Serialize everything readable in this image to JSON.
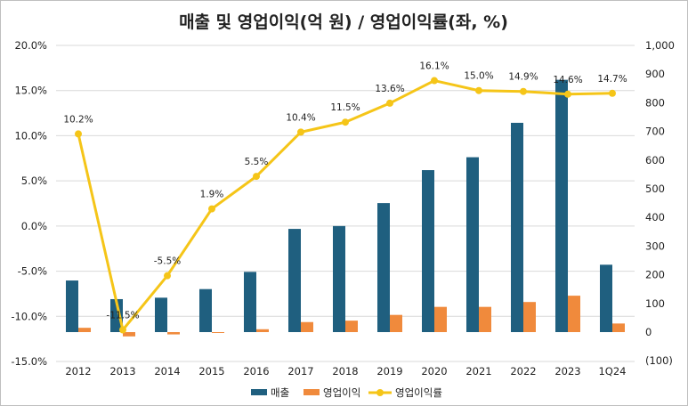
{
  "chart_data": {
    "type": "bar",
    "title": "매출 및 영업이익(억 원) / 영업이익률(좌, %)",
    "categories": [
      "2012",
      "2013",
      "2014",
      "2015",
      "2016",
      "2017",
      "2018",
      "2019",
      "2020",
      "2021",
      "2022",
      "2023",
      "1Q24"
    ],
    "series": [
      {
        "name": "매출",
        "type": "bar",
        "axis": "right",
        "color": "#1f5f7f",
        "values": [
          180,
          115,
          120,
          150,
          210,
          360,
          370,
          450,
          565,
          610,
          730,
          880,
          235
        ]
      },
      {
        "name": "영업이익",
        "type": "bar",
        "axis": "right",
        "color": "#f08a3c",
        "values": [
          15,
          -15,
          -8,
          -3,
          10,
          35,
          40,
          60,
          88,
          88,
          105,
          127,
          30
        ]
      },
      {
        "name": "영업이익률",
        "type": "line",
        "axis": "left",
        "color": "#f5c518",
        "values": [
          10.2,
          -11.5,
          -5.5,
          1.9,
          5.5,
          10.4,
          11.5,
          13.6,
          16.1,
          15.0,
          14.9,
          14.6,
          14.7
        ],
        "labels": [
          "10.2%",
          "-11.5%",
          "-5.5%",
          "1.9%",
          "5.5%",
          "10.4%",
          "11.5%",
          "13.6%",
          "16.1%",
          "15.0%",
          "14.9%",
          "14.6%",
          "14.7%"
        ]
      }
    ],
    "left_axis": {
      "range": [
        -15,
        20
      ],
      "ticks": [
        "20.0%",
        "15.0%",
        "10.0%",
        "5.0%",
        "0.0%",
        "-5.0%",
        "-10.0%",
        "-15.0%"
      ]
    },
    "right_axis": {
      "range": [
        -100,
        1000
      ],
      "ticks": [
        "1,000",
        "900",
        "800",
        "700",
        "600",
        "500",
        "400",
        "300",
        "200",
        "100",
        "0",
        "(100)"
      ]
    },
    "grid": true,
    "legend_position": "bottom"
  }
}
